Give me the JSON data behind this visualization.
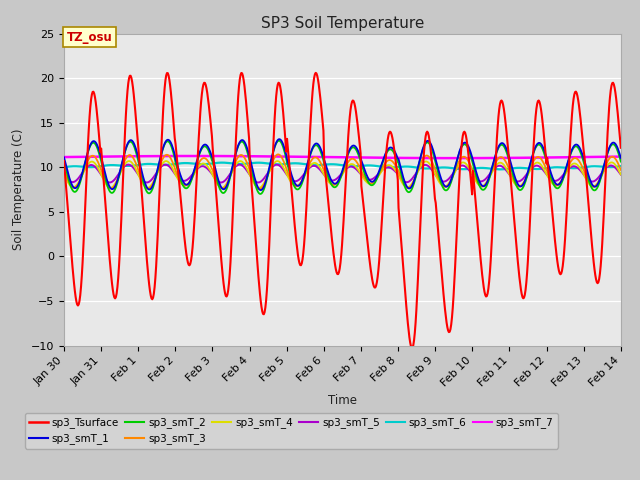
{
  "title": "SP3 Soil Temperature",
  "ylabel": "Soil Temperature (C)",
  "xlabel": "Time",
  "ylim": [
    -10,
    25
  ],
  "xlim": [
    0,
    15
  ],
  "fig_bg_color": "#c8c8c8",
  "plot_bg_color": "#e8e8e8",
  "tz_label": "TZ_osu",
  "series_colors": {
    "sp3_Tsurface": "#ff0000",
    "sp3_smT_1": "#0000dd",
    "sp3_smT_2": "#00cc00",
    "sp3_smT_3": "#ff8800",
    "sp3_smT_4": "#dddd00",
    "sp3_smT_5": "#aa00cc",
    "sp3_smT_6": "#00cccc",
    "sp3_smT_7": "#ff00ff"
  },
  "xtick_labels": [
    "Jan 30",
    "Jan 31",
    "Feb 1",
    "Feb 2",
    "Feb 3",
    "Feb 4",
    "Feb 5",
    "Feb 6",
    "Feb 7",
    "Feb 8",
    "Feb 9",
    "Feb 10",
    "Feb 11",
    "Feb 12",
    "Feb 13",
    "Feb 14"
  ],
  "xtick_positions": [
    0,
    1,
    2,
    3,
    4,
    5,
    6,
    7,
    8,
    9,
    10,
    11,
    12,
    13,
    14,
    15
  ],
  "ytick_positions": [
    -10,
    -5,
    0,
    5,
    10,
    15,
    20,
    25
  ],
  "surface_peaks": [
    18.5,
    20.3,
    20.6,
    19.5,
    20.6,
    19.5,
    20.6,
    17.5,
    14.0,
    14.0,
    14.0,
    17.5,
    17.5,
    18.5,
    19.5
  ],
  "surface_troughs": [
    -5.5,
    -4.7,
    -4.8,
    -1.0,
    -4.5,
    -6.5,
    -1.0,
    -2.0,
    -3.5,
    -10.3,
    -8.5,
    -4.5,
    -4.7,
    -2.0,
    -3.0
  ]
}
